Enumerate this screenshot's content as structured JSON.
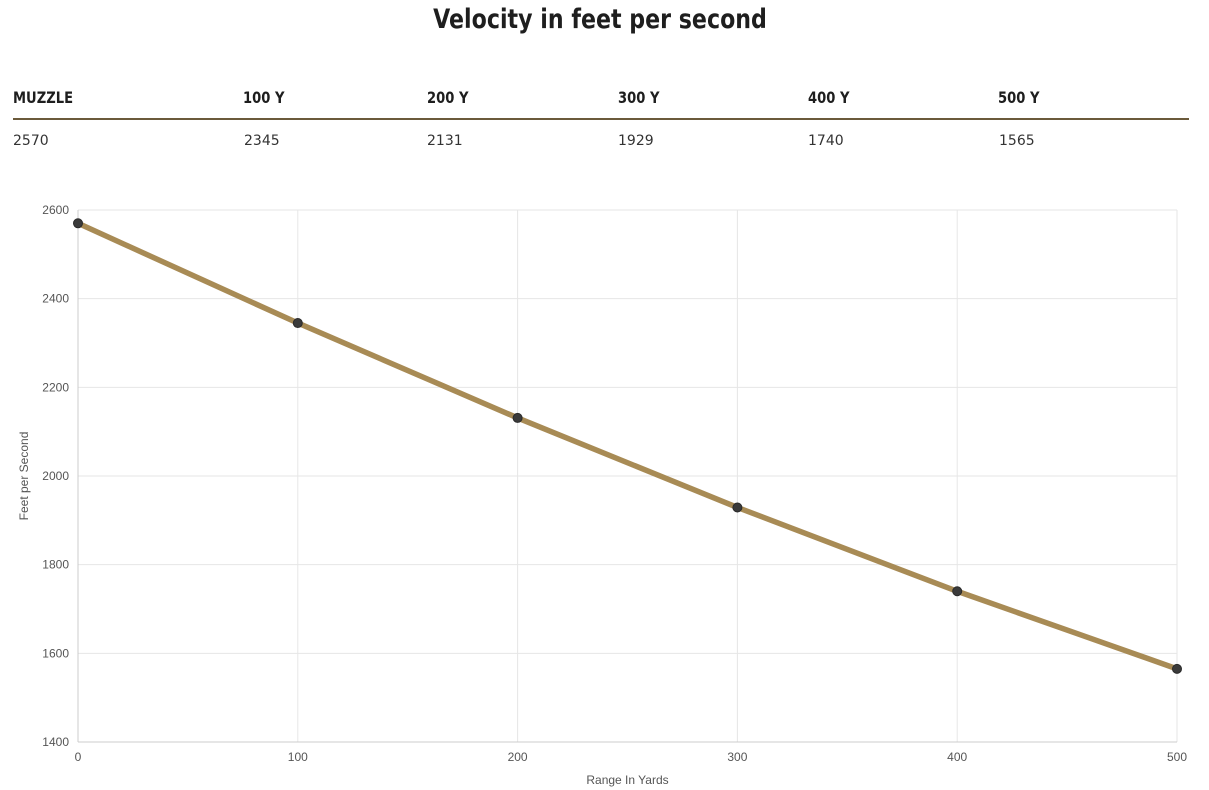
{
  "title": "Velocity in feet per second",
  "table": {
    "headers": [
      "MUZZLE",
      "100 Y",
      "200 Y",
      "300 Y",
      "400 Y",
      "500 Y"
    ],
    "values": [
      "2570",
      "2345",
      "2131",
      "1929",
      "1740",
      "1565"
    ]
  },
  "colors": {
    "line": "#a88b55",
    "marker": "#3a3a3a",
    "grid": "#e6e6e6",
    "table_rule": "#6b5a3b"
  },
  "chart_data": {
    "type": "line",
    "title": "Velocity in feet per second",
    "xlabel": "Range In Yards",
    "ylabel": "Feet per Second",
    "x": [
      0,
      100,
      200,
      300,
      400,
      500
    ],
    "series": [
      {
        "values": [
          2570,
          2345,
          2131,
          1929,
          1740,
          1565
        ]
      }
    ],
    "xlim": [
      0,
      500
    ],
    "ylim": [
      1400,
      2600
    ],
    "xticks": [
      0,
      100,
      200,
      300,
      400,
      500
    ],
    "yticks": [
      1400,
      1600,
      1800,
      2000,
      2200,
      2400,
      2600
    ],
    "grid": true,
    "legend": "none"
  }
}
